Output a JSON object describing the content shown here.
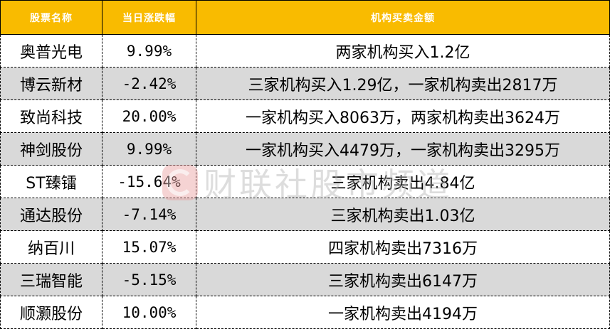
{
  "headers": [
    "股票名称",
    "当日涨跌幅",
    "机构买卖金额"
  ],
  "rows": [
    {
      "name": "奥普光电",
      "change": "9.99%",
      "inst": "两家机构买入1.2亿"
    },
    {
      "name": "博云新材",
      "change": "-2.42%",
      "inst": "三家机构买入1.29亿，一家机构卖出2817万"
    },
    {
      "name": "致尚科技",
      "change": "20.00%",
      "inst": "一家机构买入8063万，两家机构卖出3624万"
    },
    {
      "name": "神剑股份",
      "change": "9.99%",
      "inst": "一家机构买入4479万，一家机构卖出3295万"
    },
    {
      "name": "ST臻镭",
      "change": "-15.64%",
      "inst": "三家机构卖出4.84亿"
    },
    {
      "name": "通达股份",
      "change": "-7.14%",
      "inst": "三家机构卖出1.03亿"
    },
    {
      "name": "纳百川",
      "change": "15.07%",
      "inst": "四家机构卖出7316万"
    },
    {
      "name": "三瑞智能",
      "change": "-5.15%",
      "inst": "三家机构卖出6147万"
    },
    {
      "name": "顺灏股份",
      "change": "10.00%",
      "inst": "一家机构卖出4194万"
    }
  ],
  "watermark": "财联社股市频道",
  "colors": {
    "header": "#f9bb00",
    "alt_row": "#d9d9d9"
  }
}
